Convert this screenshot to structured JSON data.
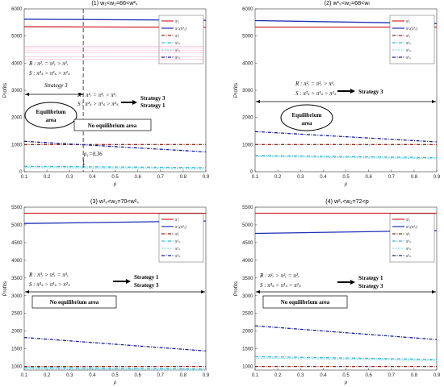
{
  "chart_data": [
    {
      "type": "line",
      "title": "(1) w₁<w₂=66<w²ₛ",
      "xlabel": "ρ",
      "ylabel": "Profits",
      "xlim": [
        0.1,
        0.9
      ],
      "ylim": [
        0,
        6000
      ],
      "xticks": [
        "0.1",
        "0.2",
        "0.3",
        "0.4",
        "0.5",
        "0.6",
        "0.7",
        "0.8",
        "0.9"
      ],
      "yticks": [
        "0",
        "1000",
        "2000",
        "3000",
        "4000",
        "5000",
        "6000"
      ],
      "legend": [
        "π¹ᵣ",
        "π²ᵣ(π³ᵣ)",
        "π³ᵣ",
        "π¹ₛ",
        "π²ₛ",
        "π³ₛ"
      ],
      "legend_position": "top-right",
      "series": [
        {
          "color": "#d2262b",
          "dash": "",
          "values": [
            [
              0.1,
              5340
            ],
            [
              0.9,
              5320
            ]
          ]
        },
        {
          "color": "#1d2fb3",
          "dash": "",
          "values": [
            [
              0.1,
              5620
            ],
            [
              0.9,
              5580
            ]
          ]
        },
        {
          "color": "#8b2d22",
          "dash": "4,1.5,1,1.5",
          "values": [
            [
              0.1,
              1000
            ],
            [
              0.9,
              1000
            ]
          ]
        },
        {
          "color": "#3fb8cc",
          "dash": "4,1.5,1,1.5",
          "values": [
            [
              0.1,
              200
            ],
            [
              0.9,
              150
            ]
          ]
        },
        {
          "color": "#86e0f0",
          "dash": "2,1.5",
          "values": [
            [
              0.1,
              150
            ],
            [
              0.9,
              100
            ]
          ]
        },
        {
          "color": "#1b1f8c",
          "dash": "4,1.5,1,1.5",
          "values": [
            [
              0.1,
              1120
            ],
            [
              0.9,
              730
            ]
          ]
        }
      ],
      "annotations": [
        "R : π²ᵣ = π³ᵣ > π¹ᵣ",
        "S : π³ₛ > π²ₛ > π¹ₛ",
        "Strategy 3",
        "R : π²ᵣ = π³ᵣ > π¹ᵣ",
        "S : π³ₛ > π¹ₛ > π²ₛ",
        "Strategy 3",
        "Strategy 1",
        "Equilibrium",
        "area",
        "No equilibrium area",
        "ρ₁=0.36"
      ]
    },
    {
      "type": "line",
      "title": "(2) w¹ₛ<w₂=68<wᵣ",
      "xlabel": "ρ",
      "ylabel": "Profits",
      "xlim": [
        0.1,
        0.9
      ],
      "ylim": [
        0,
        6000
      ],
      "xticks": [
        "0.1",
        "0.2",
        "0.3",
        "0.4",
        "0.5",
        "0.6",
        "0.7",
        "0.8",
        "0.9"
      ],
      "yticks": [
        "0",
        "1000",
        "2000",
        "3000",
        "4000",
        "5000",
        "6000"
      ],
      "legend": [
        "π¹ᵣ",
        "π²ᵣ(π³ᵣ)",
        "π³ᵣ",
        "π¹ₛ",
        "π²ₛ",
        "π³ₛ"
      ],
      "legend_position": "top-right",
      "series": [
        {
          "color": "#d2262b",
          "dash": "",
          "values": [
            [
              0.1,
              5330
            ],
            [
              0.9,
              5330
            ]
          ]
        },
        {
          "color": "#1d2fb3",
          "dash": "",
          "values": [
            [
              0.1,
              5570
            ],
            [
              0.9,
              5460
            ]
          ]
        },
        {
          "color": "#8b2d22",
          "dash": "4,1.5,1,1.5",
          "values": [
            [
              0.1,
              1000
            ],
            [
              0.9,
              1000
            ]
          ]
        },
        {
          "color": "#3fb8cc",
          "dash": "4,1.5,1,1.5",
          "values": [
            [
              0.1,
              600
            ],
            [
              0.9,
              520
            ]
          ]
        },
        {
          "color": "#86e0f0",
          "dash": "2,1.5",
          "values": [
            [
              0.1,
              560
            ],
            [
              0.9,
              480
            ]
          ]
        },
        {
          "color": "#1b1f8c",
          "dash": "4,1.5,1,1.5",
          "values": [
            [
              0.1,
              1480
            ],
            [
              0.9,
              1100
            ]
          ]
        }
      ],
      "annotations": [
        "R : π²ᵣ = π³ᵣ > π¹ᵣ",
        "S : π³ₛ > π¹ₛ > π²ₛ",
        "Strategy 3",
        "Equilibrium",
        "area"
      ]
    },
    {
      "type": "line",
      "title": "(3) w¹ₛ<w₂=70<w²ₛ",
      "xlabel": "ρ",
      "ylabel": "Profits",
      "xlim": [
        0.1,
        0.9
      ],
      "ylim": [
        900,
        5500
      ],
      "xticks": [
        "0.1",
        "0.2",
        "0.3",
        "0.4",
        "0.5",
        "0.6",
        "0.7",
        "0.8",
        "0.9"
      ],
      "yticks": [
        "1000",
        "1500",
        "2000",
        "2500",
        "3000",
        "3500",
        "4000",
        "4500",
        "5000",
        "5500"
      ],
      "legend": [
        "π¹ᵣ",
        "π²ᵣ(π³ᵣ)",
        "π³ᵣ",
        "π¹ₛ",
        "π²ₛ",
        "π³ₛ"
      ],
      "legend_position": "top-right",
      "series": [
        {
          "color": "#d2262b",
          "dash": "",
          "values": [
            [
              0.1,
              5330
            ],
            [
              0.9,
              5330
            ]
          ]
        },
        {
          "color": "#1d2fb3",
          "dash": "",
          "values": [
            [
              0.1,
              5040
            ],
            [
              0.9,
              5110
            ]
          ]
        },
        {
          "color": "#8b2d22",
          "dash": "4,1.5,1,1.5",
          "values": [
            [
              0.1,
              1000
            ],
            [
              0.9,
              1000
            ]
          ]
        },
        {
          "color": "#3fb8cc",
          "dash": "4,1.5,1,1.5",
          "values": [
            [
              0.1,
              970
            ],
            [
              0.9,
              930
            ]
          ]
        },
        {
          "color": "#86e0f0",
          "dash": "2,1.5",
          "values": [
            [
              0.1,
              940
            ],
            [
              0.9,
              900
            ]
          ]
        },
        {
          "color": "#1b1f8c",
          "dash": "4,1.5,1,1.5",
          "values": [
            [
              0.1,
              1820
            ],
            [
              0.9,
              1440
            ]
          ]
        }
      ],
      "annotations": [
        "R : π³ᵣ > π²ᵣ = π³ᵣ",
        "S : π³ₛ > π¹ₛ > π²ₛ",
        "Strategy 1",
        "Strategy 3",
        "No equilibrium area"
      ]
    },
    {
      "type": "line",
      "title": "(4) w²ₛ<w₂=72<p",
      "xlabel": "ρ",
      "ylabel": "Profits",
      "xlim": [
        0.1,
        0.9
      ],
      "ylim": [
        900,
        5500
      ],
      "xticks": [
        "0.1",
        "0.2",
        "0.3",
        "0.4",
        "0.5",
        "0.6",
        "0.7",
        "0.8",
        "0.9"
      ],
      "yticks": [
        "1000",
        "1500",
        "2000",
        "2500",
        "3000",
        "3500",
        "4000",
        "4500",
        "5000",
        "5500"
      ],
      "legend": [
        "π¹ᵣ",
        "π²ᵣ(π³ᵣ)",
        "π³ᵣ",
        "π¹ₛ",
        "π²ₛ",
        "π³ₛ"
      ],
      "legend_position": "top-right",
      "series": [
        {
          "color": "#d2262b",
          "dash": "",
          "values": [
            [
              0.1,
              5330
            ],
            [
              0.9,
              5330
            ]
          ]
        },
        {
          "color": "#1d2fb3",
          "dash": "",
          "values": [
            [
              0.1,
              4760
            ],
            [
              0.9,
              4840
            ]
          ]
        },
        {
          "color": "#8b2d22",
          "dash": "4,1.5,1,1.5",
          "values": [
            [
              0.1,
              1000
            ],
            [
              0.9,
              1000
            ]
          ]
        },
        {
          "color": "#3fb8cc",
          "dash": "4,1.5,1,1.5",
          "values": [
            [
              0.1,
              1280
            ],
            [
              0.9,
              1200
            ]
          ]
        },
        {
          "color": "#86e0f0",
          "dash": "2,1.5",
          "values": [
            [
              0.1,
              1240
            ],
            [
              0.9,
              1170
            ]
          ]
        },
        {
          "color": "#1b1f8c",
          "dash": "4,1.5,1,1.5",
          "values": [
            [
              0.1,
              2150
            ],
            [
              0.9,
              1760
            ]
          ]
        }
      ],
      "annotations": [
        "R : π¹ᵣ > π²ᵣ = π³ᵣ",
        "S : π³ₛ > π¹ₛ > π²ₛ",
        "Strategy 1",
        "Strategy 3",
        "No equilibrium area"
      ]
    }
  ]
}
